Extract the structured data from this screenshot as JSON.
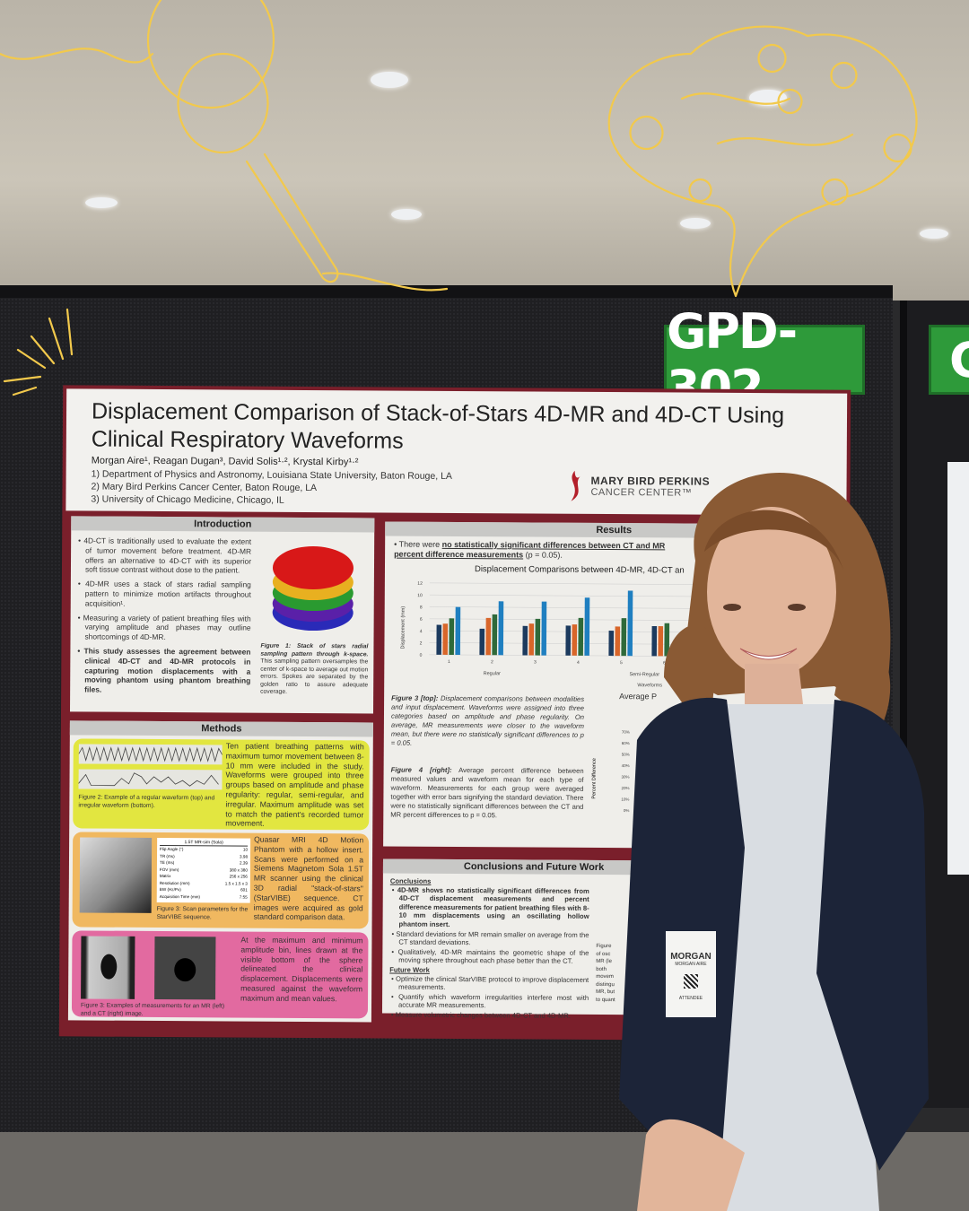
{
  "booth": {
    "sign": "GPD-302",
    "sign_partial": "G",
    "sign_color": "#2e9a3a"
  },
  "poster": {
    "title": "Displacement Comparison of Stack-of-Stars 4D-MR and 4D-CT Using Clinical Respiratory Waveforms",
    "authors": "Morgan Aire¹, Reagan Dugan³, David Solis¹·², Krystal Kirby¹·²",
    "affiliations": [
      "1)  Department of Physics and Astronomy, Louisiana State University, Baton Rouge, LA",
      "2)  Mary Bird Perkins Cancer Center, Baton Rouge, LA",
      "3)  University of Chicago Medicine, Chicago, IL"
    ],
    "logo": {
      "line1": "MARY BIRD PERKINS",
      "line2": "CANCER CENTER™"
    },
    "frame_color": "#7a1f2b",
    "introduction": {
      "heading": "Introduction",
      "bullets": [
        "4D-CT is traditionally used to evaluate the extent of tumor movement before treatment. 4D-MR offers an alternative to 4D-CT with its superior soft tissue contrast without dose to the patient.",
        "4D-MR uses a stack of stars radial sampling pattern to minimize motion artifacts throughout acquisition¹.",
        "Measuring a variety of patient breathing files with varying amplitude and phases may outline shortcomings of 4D-MR.",
        "This study assesses the agreement between clinical 4D-CT and 4D-MR protocols in capturing motion displacements with a moving phantom using phantom breathing files."
      ],
      "fig1_title": "Figure 1: Stack of stars radial sampling pattern through k-space.",
      "fig1_text": "This sampling pattern oversamples the center of k-space to average out motion errors. Spokes are separated by the golden ratio to assure adequate coverage."
    },
    "methods": {
      "heading": "Methods",
      "block1": "Ten patient breathing patterns with maximum tumor movement between 8-10 mm were included in the study. Waveforms were grouped into three groups based on amplitude and phase regularity: regular, semi-regular, and irregular. Maximum amplitude was set to match the patient's recorded tumor movement.",
      "fig2": "Figure 2: Example of a regular waveform (top) and irregular waveform (bottom).",
      "block2": "Quasar MRI 4D Motion Phantom with a hollow insert. Scans were performed on a Siemens Magnetom Sola 1.5T MR scanner using the clinical 3D radial \"stack-of-stars\" (StarVIBE) sequence. CT images were acquired as gold standard comparison data.",
      "table_title": "1.5T MR-sim (Sola)",
      "table": [
        [
          "Flip Angle (°)",
          "10"
        ],
        [
          "TR (ms)",
          "3.98"
        ],
        [
          "TE (ms)",
          "2.39"
        ],
        [
          "FOV (mm)",
          "380 x 380"
        ],
        [
          "Matrix",
          "256 x 256"
        ],
        [
          "Resolution (mm)",
          "1.5 x 1.5 x 3"
        ],
        [
          "BW (Hz/Px)",
          "601"
        ],
        [
          "Acquisition Time (min)",
          "7:55"
        ]
      ],
      "fig3": "Figure 3: Scan parameters for the StarVIBE sequence.",
      "block3": "At the maximum and minimum amplitude bin, lines drawn at the visible bottom of the sphere delineated the clinical displacement. Displacements were measured against the waveform maximum and mean values.",
      "fig3b": "Figure 3: Examples of measurements for an MR (left) and a CT (right) image."
    },
    "results": {
      "heading": "Results",
      "lead_pre": "There were ",
      "lead_u": "no statistically significant differences between CT and MR",
      "lead_u2": "percent difference measurements",
      "lead_post": " (p = 0.05).",
      "chart_title": "Displacement Comparisons between 4D-MR, 4D-CT an",
      "ylabel": "Displacement (mm)",
      "yticks": [
        "0",
        "2",
        "4",
        "6",
        "8",
        "10",
        "12"
      ],
      "categories": [
        "1",
        "2",
        "3",
        "4",
        "5",
        "6"
      ],
      "group_labels": [
        "Regular",
        "Semi-Regular"
      ],
      "xlabel": "Waveforms",
      "series_colors": [
        "#1c3a5e",
        "#d8662a",
        "#2f6a3a",
        "#1f7fc0"
      ],
      "values": [
        [
          5.0,
          5.2,
          6.1,
          8.0
        ],
        [
          4.4,
          6.2,
          6.8,
          9.0
        ],
        [
          4.9,
          5.3,
          6.1,
          9.0
        ],
        [
          5.0,
          5.2,
          6.3,
          9.7
        ],
        [
          4.2,
          4.9,
          6.3,
          10.9
        ],
        [
          5.0,
          5.0,
          5.5,
          0
        ]
      ],
      "fig3_title": "Figure 3 [top]:",
      "fig3_text": "Displacement comparisons between modalities and input displacement. Waveforms were assigned into three categories based on amplitude and phase regularity. On average, MR measurements were closer to the waveform mean, but there were no statistically significant differences to p = 0.05.",
      "fig4_title": "Figure 4 [right]:",
      "fig4_text": "Average percent difference between measured values and waveform mean for each type of waveform. Measurements for each group were averaged together with error bars signifying the standard deviation. There were no statistically significant differences between the CT and MR percent differences to p = 0.05.",
      "chart2_title": "Average P",
      "chart2_ylabel": "Percent Difference",
      "chart2_yticks": [
        "0%",
        "10%",
        "20%",
        "30%",
        "40%",
        "50%",
        "60%",
        "70%"
      ]
    },
    "conclusions": {
      "heading": "Conclusions and Future Work",
      "sub1": "Conclusions",
      "items": [
        "4D-MR shows no statistically significant differences from 4D-CT displacement measurements and percent difference measurements for patient breathing files with 8-10 mm displacements using an oscillating hollow phantom insert.",
        "Standard deviations for MR remain smaller on average from the CT standard deviations.",
        "Qualitatively, 4D-MR maintains the geometric shape of the moving sphere throughout each phase better than the CT."
      ],
      "sub2": "Future Work",
      "future": [
        "Optimize the clinical StarVIBE protocol to improve displacement measurements.",
        "Quantify which waveform irregularities interfere most with accurate MR measurements.",
        "Measure volumetric changes between 4D-CT and 4D-MR."
      ],
      "side_caption": "Figure of osc MR (le both movem distingu MR, but to quant"
    }
  },
  "badge": {
    "name": "MORGAN",
    "full_name": "MORGAN AIRE",
    "role": "ATTENDEE"
  },
  "doodle_color": "#f2c94c"
}
